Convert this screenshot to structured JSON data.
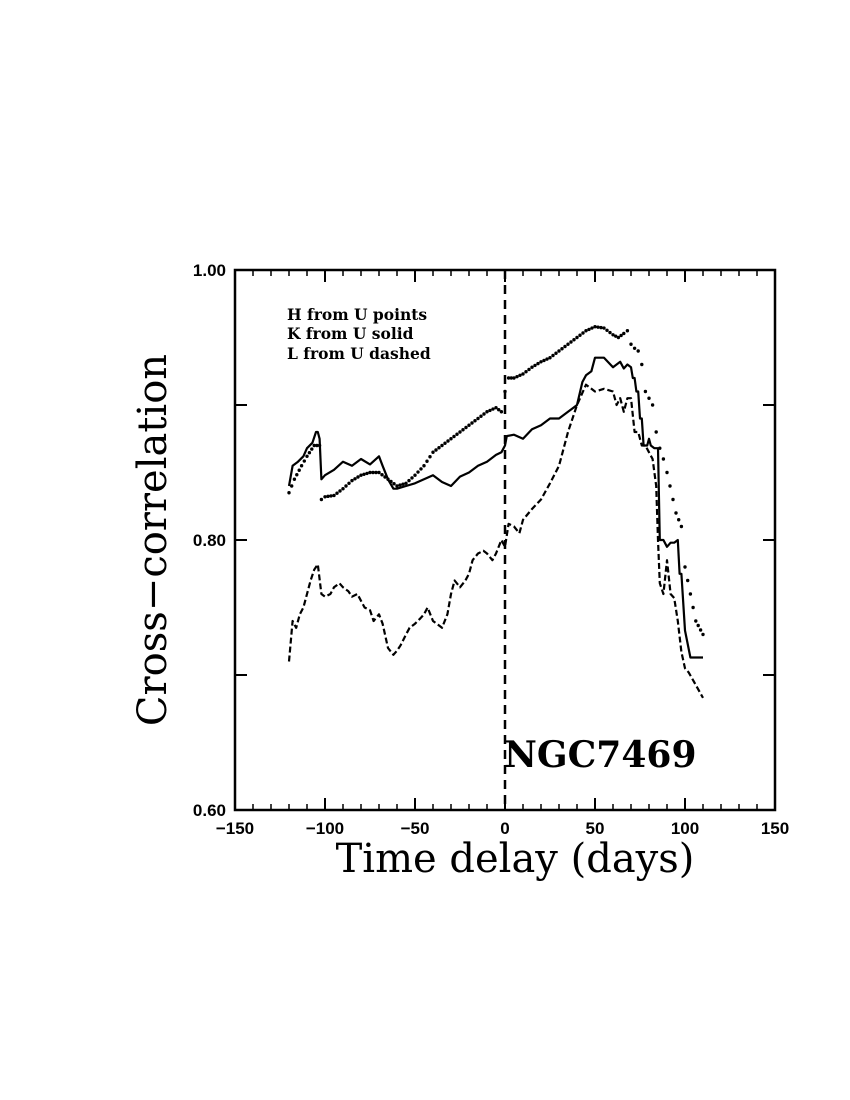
{
  "chart_data": {
    "type": "line",
    "title": "",
    "xlabel": "Time delay (days)",
    "ylabel": "Cross−correlation",
    "xlim": [
      -150,
      150
    ],
    "ylim": [
      0.6,
      1.0
    ],
    "xticks": [
      -150,
      -100,
      -50,
      0,
      50,
      100,
      150
    ],
    "xtick_labels": [
      "−150",
      "−100",
      "−50",
      "0",
      "50",
      "100",
      "150"
    ],
    "yticks": [
      0.6,
      0.7,
      0.8,
      0.9,
      1.0
    ],
    "ytick_labels": [
      "0.60",
      "",
      "0.80",
      "",
      "1.00"
    ],
    "grid": false,
    "legend_position": "top-left",
    "legend": [
      "H from U points",
      "K from U solid",
      "L from U dashed"
    ],
    "annotation": "NGC7469",
    "reference_line": {
      "x": 0,
      "style": "dashed"
    },
    "series": [
      {
        "name": "H from U",
        "style": "points",
        "x": [
          -120,
          -117,
          -113,
          -110,
          -106,
          -103,
          -102,
          -100,
          -95,
          -90,
          -85,
          -80,
          -75,
          -70,
          -65,
          -60,
          -55,
          -50,
          -45,
          -40,
          -35,
          -30,
          -25,
          -20,
          -15,
          -10,
          -5,
          -2,
          0,
          2,
          5,
          10,
          15,
          20,
          25,
          30,
          35,
          40,
          45,
          50,
          55,
          60,
          63,
          66,
          68,
          70,
          72,
          74,
          76,
          78,
          80,
          82,
          84,
          86,
          88,
          90,
          95,
          98,
          100,
          103,
          106,
          110
        ],
        "y": [
          0.835,
          0.845,
          0.855,
          0.862,
          0.87,
          0.87,
          0.83,
          0.832,
          0.833,
          0.838,
          0.844,
          0.848,
          0.85,
          0.85,
          0.845,
          0.84,
          0.842,
          0.848,
          0.855,
          0.865,
          0.87,
          0.875,
          0.88,
          0.885,
          0.89,
          0.895,
          0.898,
          0.895,
          0.91,
          0.92,
          0.92,
          0.923,
          0.928,
          0.932,
          0.935,
          0.94,
          0.945,
          0.95,
          0.955,
          0.958,
          0.957,
          0.952,
          0.95,
          0.953,
          0.955,
          0.945,
          0.942,
          0.94,
          0.93,
          0.91,
          0.905,
          0.9,
          0.88,
          0.868,
          0.86,
          0.85,
          0.82,
          0.81,
          0.78,
          0.76,
          0.74,
          0.73
        ]
      },
      {
        "name": "K from U",
        "style": "solid",
        "x": [
          -120,
          -118,
          -115,
          -112,
          -110,
          -107,
          -105,
          -104,
          -103,
          -102,
          -100,
          -95,
          -90,
          -85,
          -80,
          -75,
          -70,
          -68,
          -65,
          -62,
          -60,
          -55,
          -50,
          -45,
          -40,
          -35,
          -30,
          -25,
          -20,
          -15,
          -10,
          -5,
          -2,
          0,
          1,
          5,
          10,
          15,
          20,
          25,
          30,
          35,
          38,
          40,
          43,
          45,
          48,
          50,
          55,
          60,
          62,
          64,
          66,
          68,
          70,
          71,
          72,
          73,
          74,
          75,
          76,
          77,
          78,
          79,
          80,
          81,
          83,
          85,
          86,
          88,
          90,
          92,
          94,
          96,
          97,
          98,
          100,
          103,
          105,
          110
        ],
        "y": [
          0.84,
          0.855,
          0.858,
          0.862,
          0.868,
          0.872,
          0.88,
          0.88,
          0.875,
          0.845,
          0.848,
          0.852,
          0.858,
          0.855,
          0.86,
          0.856,
          0.862,
          0.855,
          0.845,
          0.838,
          0.838,
          0.84,
          0.842,
          0.845,
          0.848,
          0.843,
          0.84,
          0.847,
          0.85,
          0.855,
          0.858,
          0.863,
          0.865,
          0.87,
          0.877,
          0.878,
          0.875,
          0.882,
          0.885,
          0.89,
          0.89,
          0.895,
          0.898,
          0.9,
          0.917,
          0.922,
          0.925,
          0.935,
          0.935,
          0.928,
          0.93,
          0.932,
          0.927,
          0.93,
          0.928,
          0.92,
          0.92,
          0.91,
          0.91,
          0.89,
          0.89,
          0.87,
          0.87,
          0.87,
          0.875,
          0.87,
          0.868,
          0.868,
          0.8,
          0.8,
          0.795,
          0.798,
          0.798,
          0.8,
          0.775,
          0.775,
          0.733,
          0.713,
          0.713,
          0.713
        ]
      },
      {
        "name": "L from U",
        "style": "dashed",
        "x": [
          -120,
          -118,
          -116,
          -114,
          -112,
          -110,
          -108,
          -106,
          -104,
          -102,
          -100,
          -97,
          -95,
          -92,
          -90,
          -87,
          -85,
          -82,
          -80,
          -78,
          -75,
          -73,
          -70,
          -68,
          -65,
          -62,
          -60,
          -58,
          -55,
          -53,
          -50,
          -47,
          -45,
          -43,
          -40,
          -37,
          -35,
          -32,
          -30,
          -28,
          -25,
          -22,
          -20,
          -18,
          -15,
          -12,
          -10,
          -7,
          -5,
          -2,
          0,
          2,
          5,
          8,
          10,
          15,
          20,
          25,
          30,
          35,
          40,
          45,
          50,
          55,
          60,
          62,
          64,
          66,
          68,
          70,
          72,
          74,
          76,
          78,
          80,
          82,
          84,
          85,
          86,
          88,
          90,
          92,
          94,
          96,
          98,
          100,
          102,
          105,
          110
        ],
        "y": [
          0.71,
          0.74,
          0.735,
          0.745,
          0.75,
          0.76,
          0.77,
          0.778,
          0.782,
          0.76,
          0.758,
          0.76,
          0.765,
          0.768,
          0.765,
          0.762,
          0.758,
          0.76,
          0.755,
          0.75,
          0.748,
          0.74,
          0.745,
          0.738,
          0.72,
          0.715,
          0.718,
          0.722,
          0.73,
          0.735,
          0.738,
          0.742,
          0.745,
          0.75,
          0.74,
          0.737,
          0.735,
          0.745,
          0.76,
          0.77,
          0.765,
          0.77,
          0.775,
          0.785,
          0.79,
          0.792,
          0.79,
          0.785,
          0.79,
          0.8,
          0.795,
          0.812,
          0.81,
          0.805,
          0.815,
          0.823,
          0.83,
          0.842,
          0.855,
          0.88,
          0.9,
          0.915,
          0.91,
          0.912,
          0.91,
          0.9,
          0.905,
          0.895,
          0.905,
          0.905,
          0.88,
          0.88,
          0.87,
          0.87,
          0.865,
          0.86,
          0.84,
          0.8,
          0.768,
          0.76,
          0.785,
          0.76,
          0.757,
          0.74,
          0.717,
          0.705,
          0.702,
          0.695,
          0.683
        ]
      }
    ]
  }
}
